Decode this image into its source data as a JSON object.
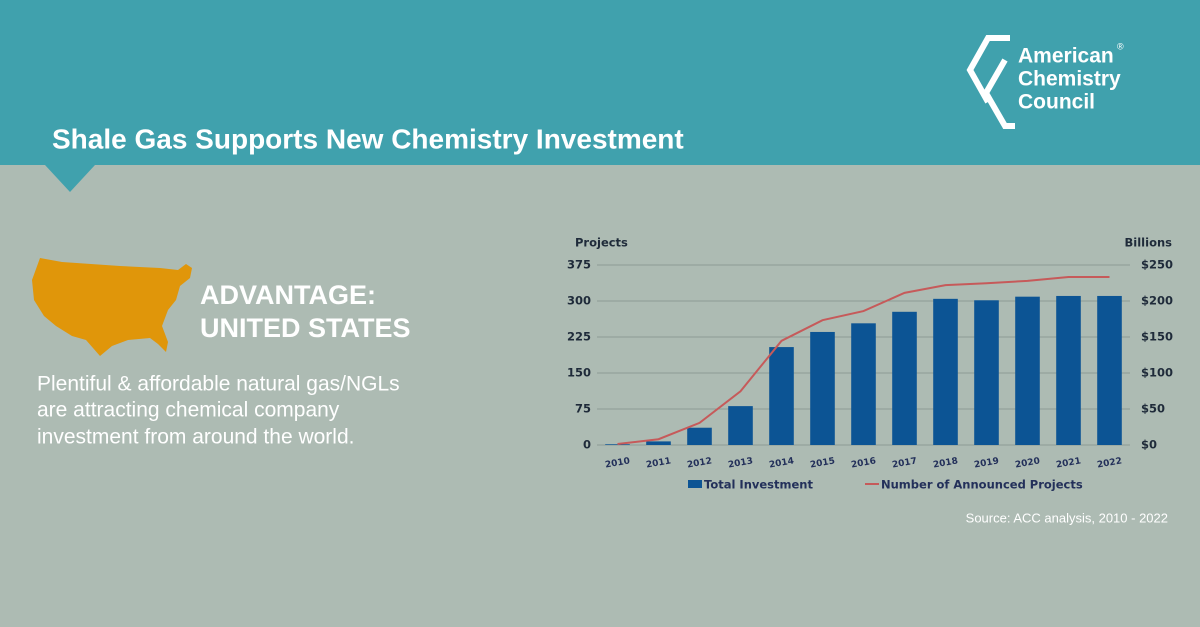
{
  "header": {
    "title": "Shale Gas Supports New Chemistry Investment"
  },
  "logo": {
    "lines": [
      "American",
      "Chemistry",
      "Council"
    ],
    "mark": "®"
  },
  "advantage": {
    "lines": [
      "ADVANTAGE:",
      "UNITED STATES"
    ]
  },
  "body": {
    "lines": [
      "Plentiful & affordable natural gas/NGLs",
      "are attracting chemical company",
      "investment from around the world."
    ]
  },
  "chart_data": {
    "type": "combo",
    "y_label": "Projects",
    "y2_label": "Billions",
    "categories": [
      "2010",
      "2011",
      "2012",
      "2013",
      "2014",
      "2015",
      "2016",
      "2017",
      "2018",
      "2019",
      "2020",
      "2021",
      "2022"
    ],
    "series": [
      {
        "name": "Total Investment",
        "type": "bar",
        "axis": "y2",
        "color": "#0c5494",
        "values": [
          1,
          5,
          24,
          54,
          136,
          157,
          169,
          185,
          203,
          201,
          206,
          207,
          207
        ]
      },
      {
        "name": "Number of Announced Projects",
        "type": "line",
        "axis": "y",
        "color": "#c65a5a",
        "values": [
          2,
          12,
          46,
          112,
          217,
          260,
          279,
          317,
          333,
          337,
          342,
          350,
          350
        ]
      }
    ],
    "ylim": [
      0,
      375
    ],
    "yticks": [
      0,
      75,
      150,
      225,
      300,
      375
    ],
    "y2lim": [
      0,
      250
    ],
    "y2ticks": [
      {
        "value": 0,
        "label": "$0"
      },
      {
        "value": 50,
        "label": "$50"
      },
      {
        "value": 100,
        "label": "$100"
      },
      {
        "value": 150,
        "label": "$150"
      },
      {
        "value": 200,
        "label": "$200"
      },
      {
        "value": 250,
        "label": "$250"
      }
    ],
    "grid": true,
    "source": "Source: ACC analysis, 2010 - 2022"
  }
}
